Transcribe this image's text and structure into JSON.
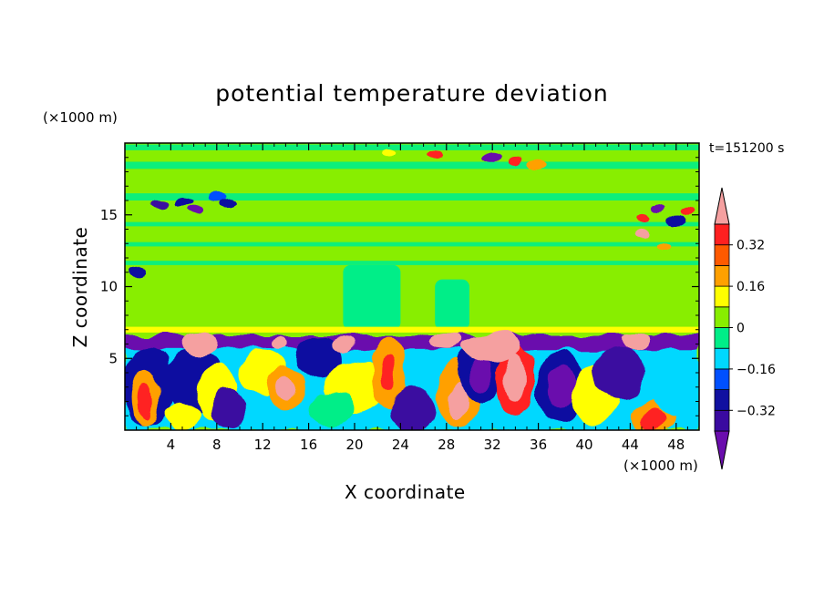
{
  "chart_data": {
    "type": "heatmap",
    "title": "potential temperature deviation",
    "xlabel": "X coordinate",
    "ylabel": "Z coordinate",
    "x_unit": "(×1000 m)",
    "y_unit": "(×1000 m)",
    "time_label": "t=151200 s",
    "xlim": [
      0,
      50
    ],
    "ylim": [
      0,
      20
    ],
    "x_ticks": [
      4,
      8,
      12,
      16,
      20,
      24,
      28,
      32,
      36,
      40,
      44,
      48
    ],
    "y_ticks": [
      5,
      10,
      15
    ],
    "colorbar": {
      "levels": [
        -0.4,
        -0.32,
        -0.24,
        -0.16,
        -0.08,
        0,
        0.08,
        0.16,
        0.24,
        0.32,
        0.4
      ],
      "labels": [
        "0.32",
        "0.16",
        "0",
        "−0.16",
        "−0.32"
      ],
      "label_values": [
        0.32,
        0.16,
        0,
        -0.16,
        -0.32
      ],
      "colors": [
        "#6a0dad",
        "#3a0aa0",
        "#1010a0",
        "#0050ff",
        "#00d8ff",
        "#00ee88",
        "#88ee00",
        "#ffff00",
        "#ffa000",
        "#ff5a00",
        "#ff2020",
        "#f5a0a0"
      ],
      "extend": "both"
    },
    "field_summary": [
      {
        "z_range": [
          0,
          6.5
        ],
        "description": "convective layer: eddies alternating positive (red/pink) and negative (blue/purple)"
      },
      {
        "z_range": [
          6.5,
          7
        ],
        "description": "inversion: mostly negative (purple) with pink overshoots"
      },
      {
        "z_range": [
          7,
          20
        ],
        "description": "near zero (green), weak positive bands, small perturbations near 15-17 and 19-20"
      }
    ]
  }
}
